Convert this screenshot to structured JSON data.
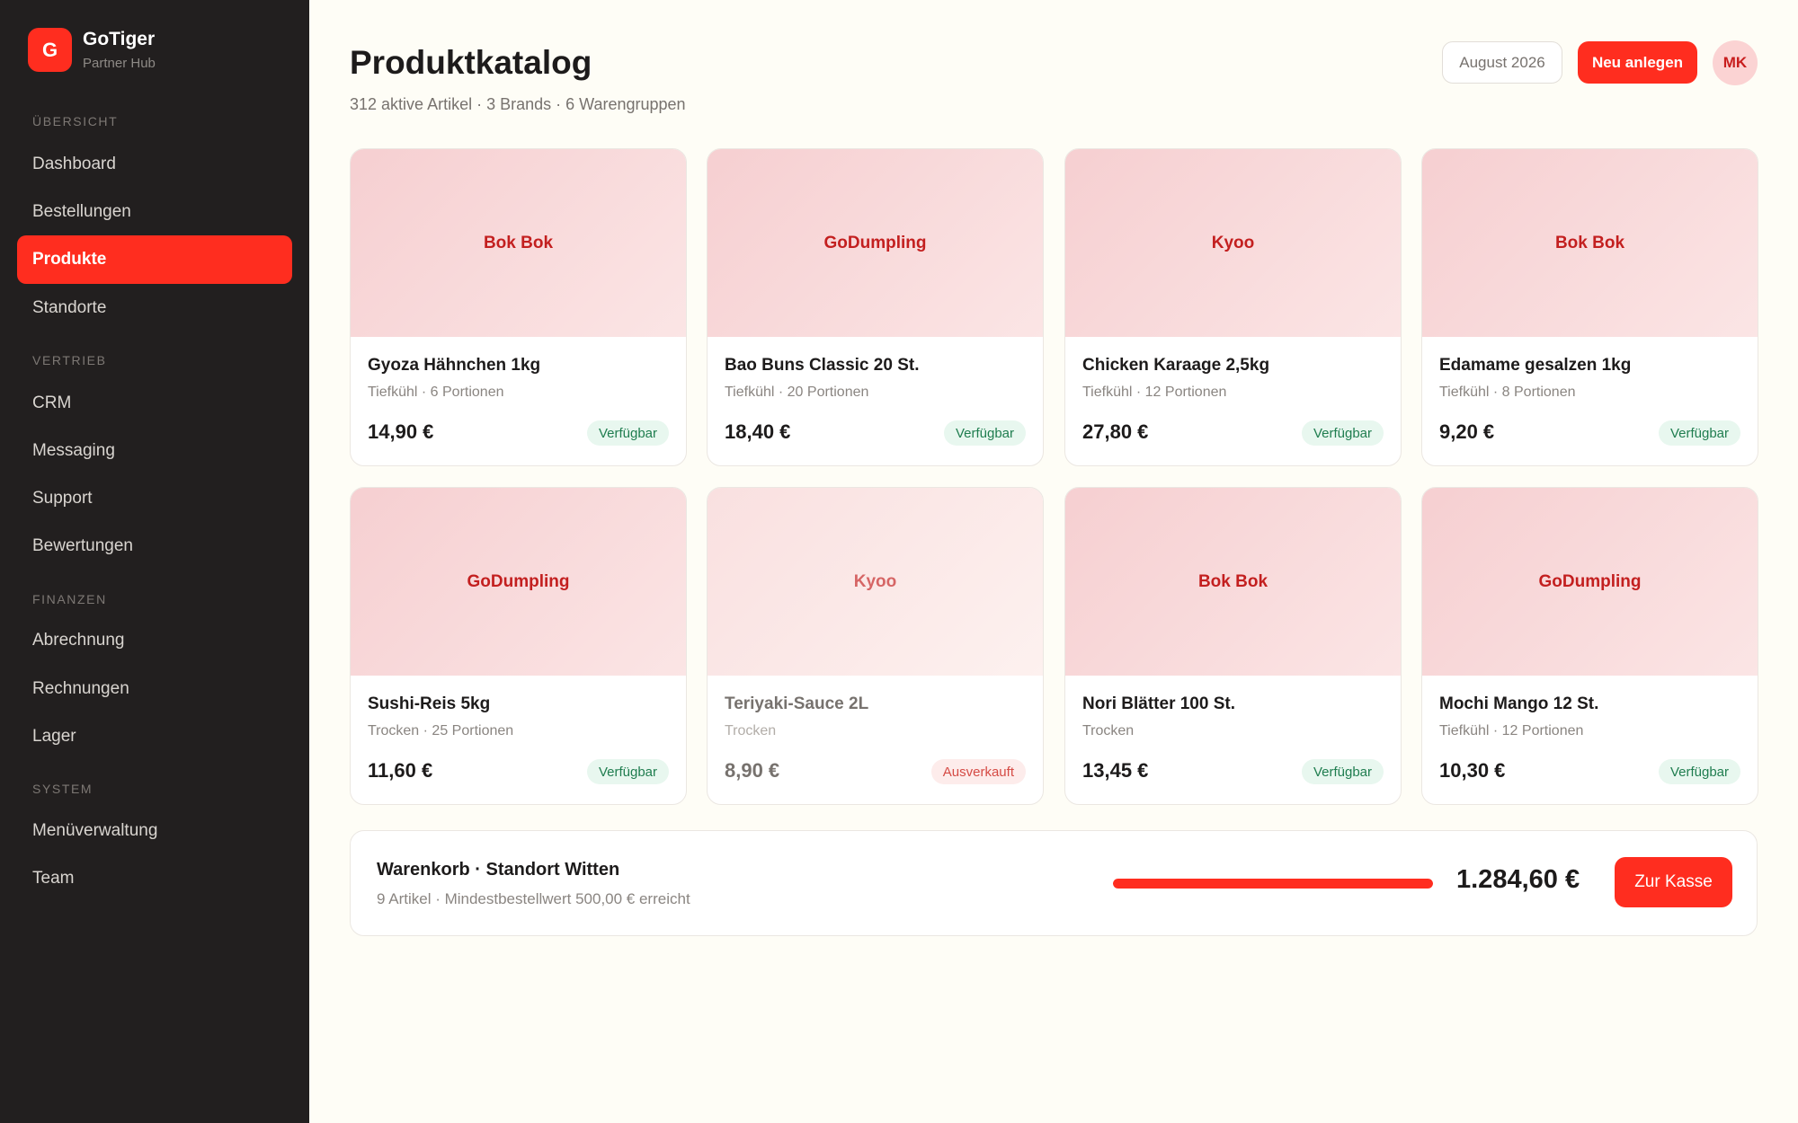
{
  "brand": {
    "logo_letter": "G",
    "name": "GoTiger",
    "subtitle": "Partner Hub"
  },
  "sidebar": {
    "sections": [
      "ÜBERSICHT",
      "VERTRIEB",
      "FINANZEN",
      "SYSTEM"
    ],
    "items": [
      "Dashboard",
      "Bestellungen",
      "Produkte",
      "Standorte",
      "CRM",
      "Messaging",
      "Support",
      "Bewertungen",
      "Abrechnung",
      "Rechnungen",
      "Lager",
      "Menüverwaltung",
      "Team"
    ],
    "active": "Produkte"
  },
  "header": {
    "title": "Produktkatalog",
    "subtitle": "312 aktive Artikel · 3 Brands · 6 Warengruppen",
    "month": "August 2026",
    "new_button": "Neu anlegen",
    "avatar_initials": "MK"
  },
  "products": [
    {
      "brand": "Bok Bok",
      "name": "Gyoza Hähnchen 1kg",
      "meta": "Tiefkühl · 6 Portionen",
      "price": "14,90 €",
      "status": "Verfügbar"
    },
    {
      "brand": "GoDumpling",
      "name": "Bao Buns Classic 20 St.",
      "meta": "Tiefkühl · 20 Portionen",
      "price": "18,40 €",
      "status": "Verfügbar"
    },
    {
      "brand": "Kyoo",
      "name": "Chicken Karaage 2,5kg",
      "meta": "Tiefkühl · 12 Portionen",
      "price": "27,80 €",
      "status": "Verfügbar"
    },
    {
      "brand": "Bok Bok",
      "name": "Edamame gesalzen 1kg",
      "meta": "Tiefkühl · 8 Portionen",
      "price": "9,20 €",
      "status": "Verfügbar"
    },
    {
      "brand": "GoDumpling",
      "name": "Sushi-Reis 5kg",
      "meta": "Trocken · 25 Portionen",
      "price": "11,60 €",
      "status": "Verfügbar"
    },
    {
      "brand": "Kyoo",
      "name": "Teriyaki-Sauce 2L",
      "meta": "Trocken",
      "price": "8,90 €",
      "status": "Ausverkauft"
    },
    {
      "brand": "Bok Bok",
      "name": "Nori Blätter 100 St.",
      "meta": "Trocken",
      "price": "13,45 €",
      "status": "Verfügbar"
    },
    {
      "brand": "GoDumpling",
      "name": "Mochi Mango 12 St.",
      "meta": "Tiefkühl · 12 Portionen",
      "price": "10,30 €",
      "status": "Verfügbar"
    }
  ],
  "cart": {
    "title": "Warenkorb · Standort Witten",
    "subtitle": "9 Artikel · Mindestbestellwert 500,00 € erreicht",
    "progress_percent": 100,
    "total": "1.284,60 €",
    "checkout_button": "Zur Kasse"
  },
  "colors": {
    "accent": "#ff2d1f",
    "sidebar_bg": "#221f1f",
    "page_bg": "#fefdf6",
    "available": "#1f7d4f",
    "sold_out": "#d54b45"
  }
}
